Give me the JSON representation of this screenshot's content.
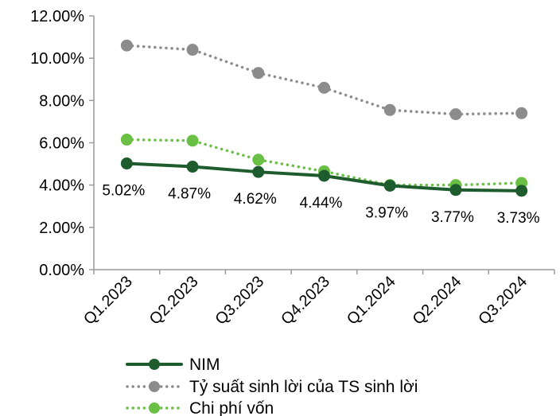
{
  "chart_data": {
    "type": "line",
    "title": "",
    "xlabel": "",
    "ylabel": "",
    "categories": [
      "Q1.2023",
      "Q2.2023",
      "Q3.2023",
      "Q4.2023",
      "Q1.2024",
      "Q2.2024",
      "Q3.2024"
    ],
    "y_ticks": [
      "0.00%",
      "2.00%",
      "4.00%",
      "6.00%",
      "8.00%",
      "10.00%",
      "12.00%"
    ],
    "ylim": [
      0,
      12
    ],
    "grid": false,
    "legend_position": "bottom",
    "series": [
      {
        "name": "NIM",
        "values": [
          5.02,
          4.87,
          4.62,
          4.44,
          3.97,
          3.77,
          3.73
        ],
        "labels": [
          "5.02%",
          "4.87%",
          "4.62%",
          "4.44%",
          "3.97%",
          "3.77%",
          "3.73%"
        ],
        "color": "#1e5c2e",
        "line_style": "solid"
      },
      {
        "name": "Tỷ suất sinh lời của TS sinh lời",
        "values": [
          10.6,
          10.4,
          9.3,
          8.6,
          7.55,
          7.35,
          7.4
        ],
        "color": "#8c8c8c",
        "line_style": "dotted"
      },
      {
        "name": "Chi phí vốn",
        "values": [
          6.15,
          6.1,
          5.2,
          4.65,
          4.0,
          4.0,
          4.1
        ],
        "color": "#6abf45",
        "line_style": "dotted"
      }
    ]
  }
}
